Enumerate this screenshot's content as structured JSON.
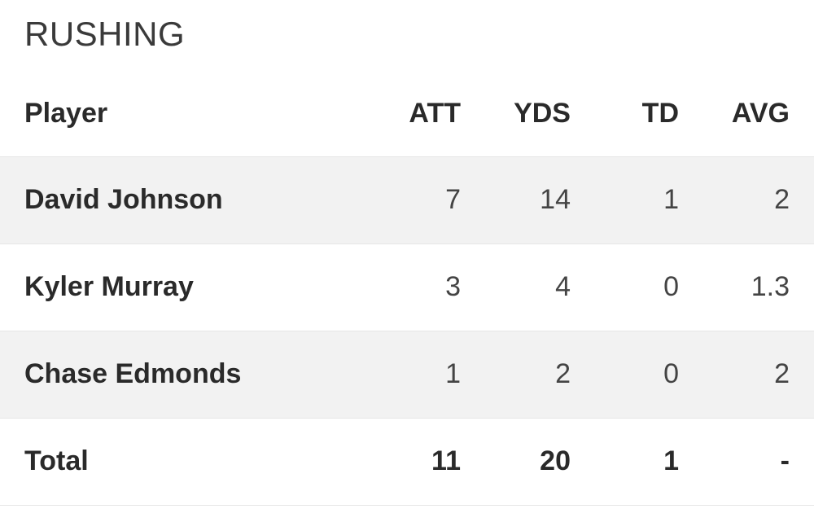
{
  "section": {
    "title": "RUSHING"
  },
  "table": {
    "headers": {
      "player": "Player",
      "att": "ATT",
      "yds": "YDS",
      "td": "TD",
      "avg": "AVG"
    },
    "rows": [
      {
        "player": "David Johnson",
        "att": "7",
        "yds": "14",
        "td": "1",
        "avg": "2"
      },
      {
        "player": "Kyler Murray",
        "att": "3",
        "yds": "4",
        "td": "0",
        "avg": "1.3"
      },
      {
        "player": "Chase Edmonds",
        "att": "1",
        "yds": "2",
        "td": "0",
        "avg": "2"
      }
    ],
    "total": {
      "label": "Total",
      "att": "11",
      "yds": "20",
      "td": "1",
      "avg": "-"
    }
  },
  "colors": {
    "shaded_row": "#f2f2f2",
    "text": "#2a2a2a",
    "divider": "#e6e6e6"
  }
}
